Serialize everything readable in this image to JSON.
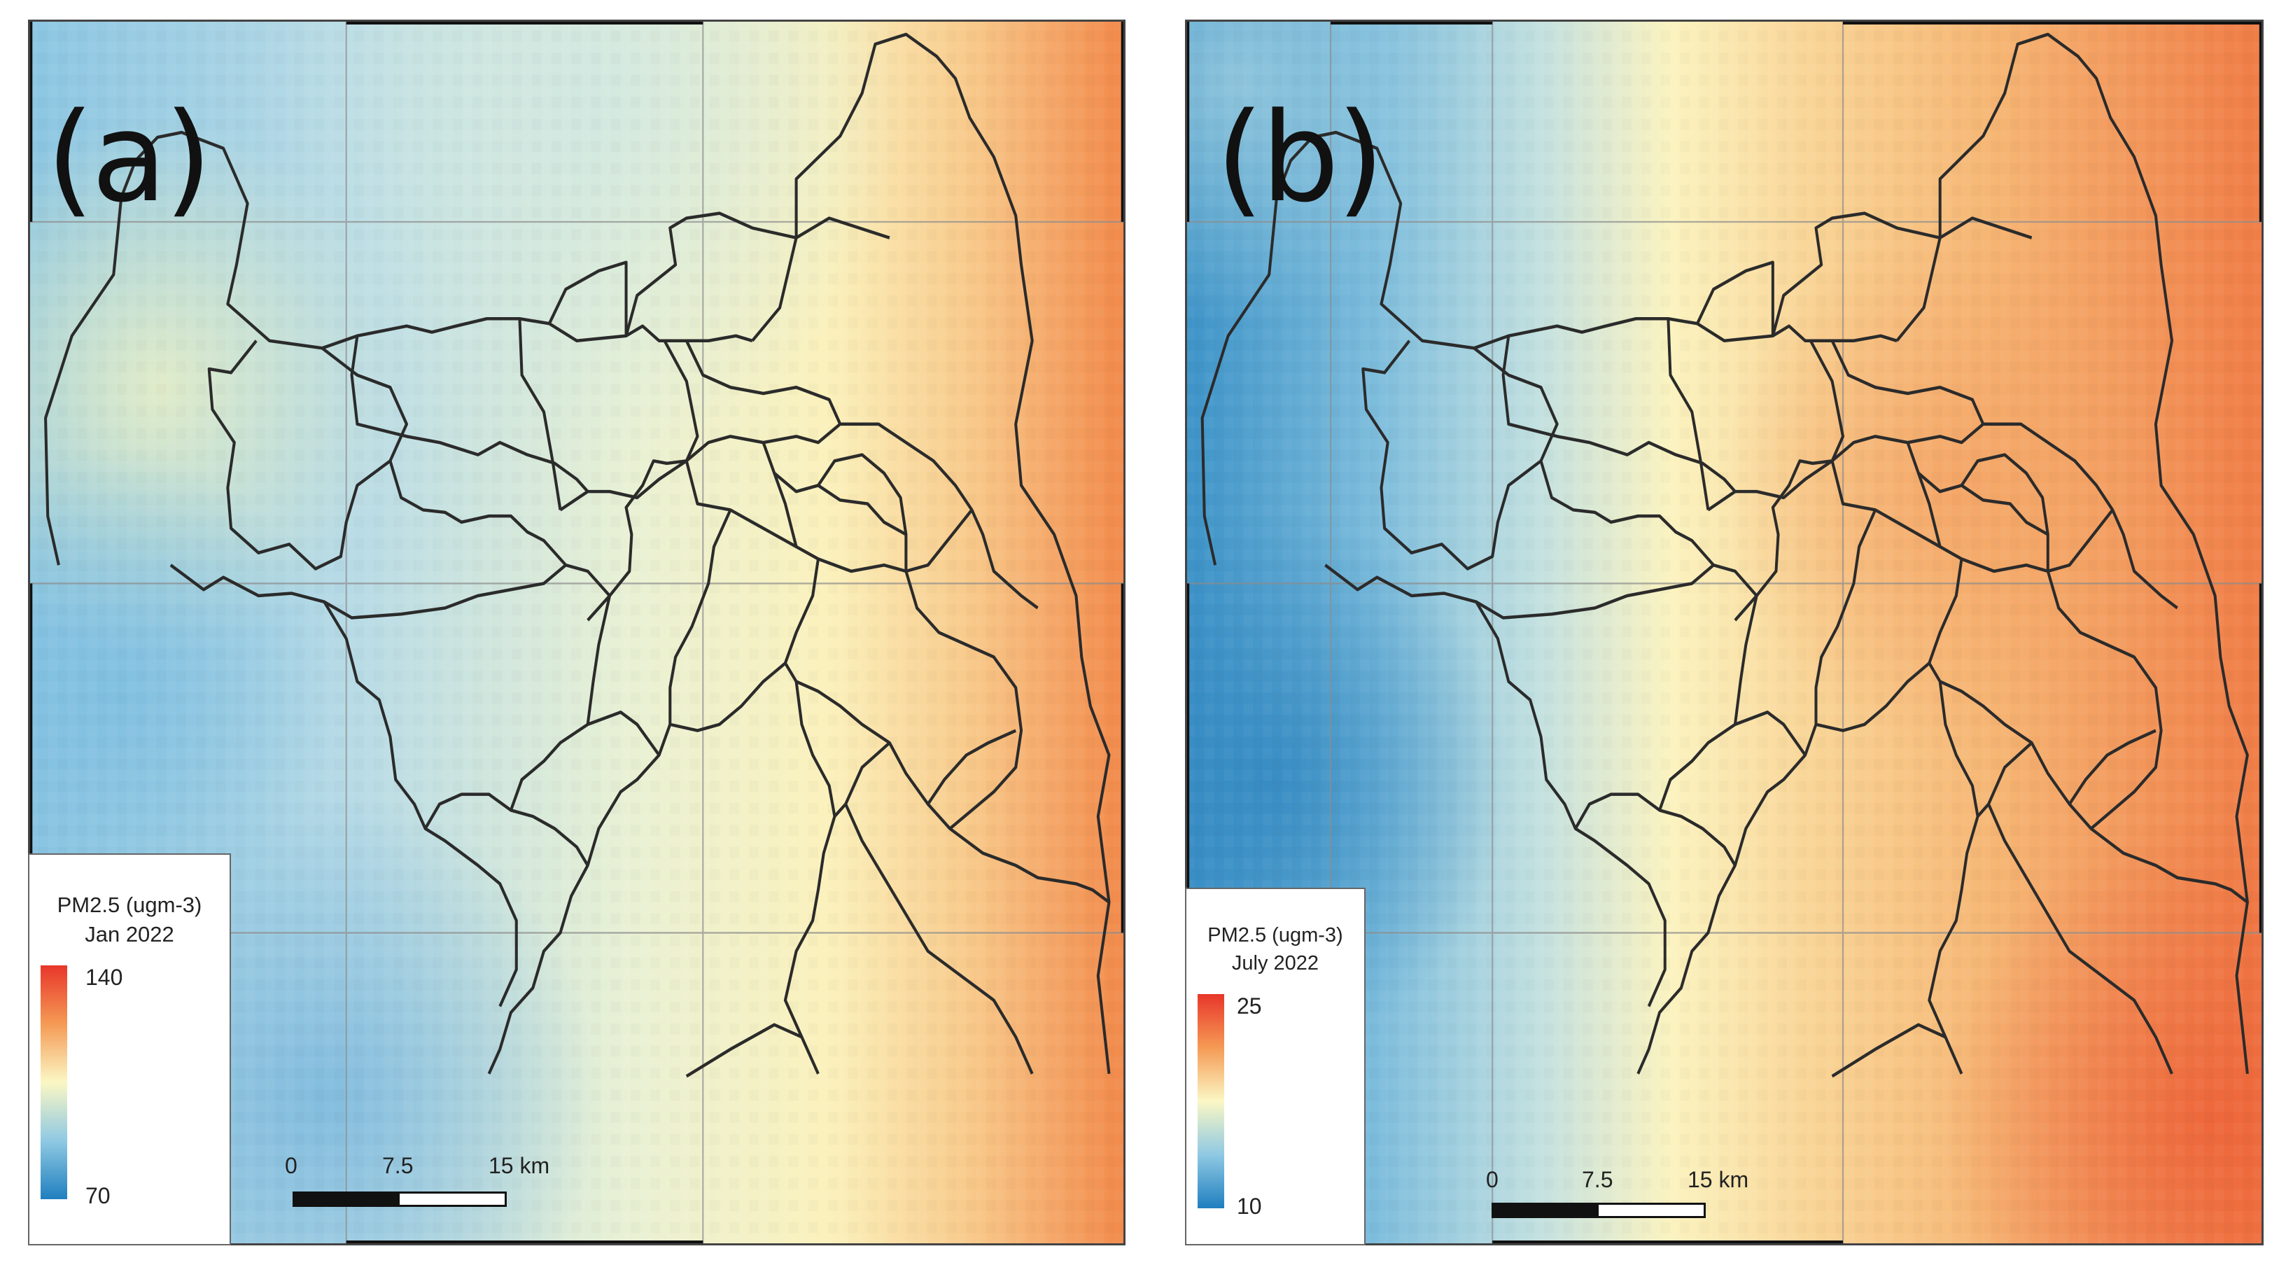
{
  "panels": [
    {
      "label": "(a)",
      "legend": {
        "title_line1": "PM2.5 (ugm-3)",
        "title_line2": "Jan 2022",
        "max_label": "140",
        "min_label": "70",
        "min_value": 70,
        "max_value": 140,
        "color_ramp": [
          "#e8362a",
          "#f59a55",
          "#fbf7c4",
          "#8fc9e3",
          "#1f7fbf"
        ]
      },
      "scale_bar": {
        "labels": [
          "0",
          "7.5",
          "15 km"
        ]
      },
      "north_arrow": "north-arrow-icon"
    },
    {
      "label": "(b)",
      "legend": {
        "title_line1": "PM2.5 (ugm-3)",
        "title_line2": "July 2022",
        "max_label": "25",
        "min_label": "10",
        "min_value": 10,
        "max_value": 25,
        "color_ramp": [
          "#e8362a",
          "#f59a55",
          "#fbf7c4",
          "#8fc9e3",
          "#1f7fbf"
        ]
      },
      "scale_bar": {
        "labels": [
          "0",
          "7.5",
          "15 km"
        ]
      },
      "north_arrow": "north-arrow-icon"
    }
  ]
}
